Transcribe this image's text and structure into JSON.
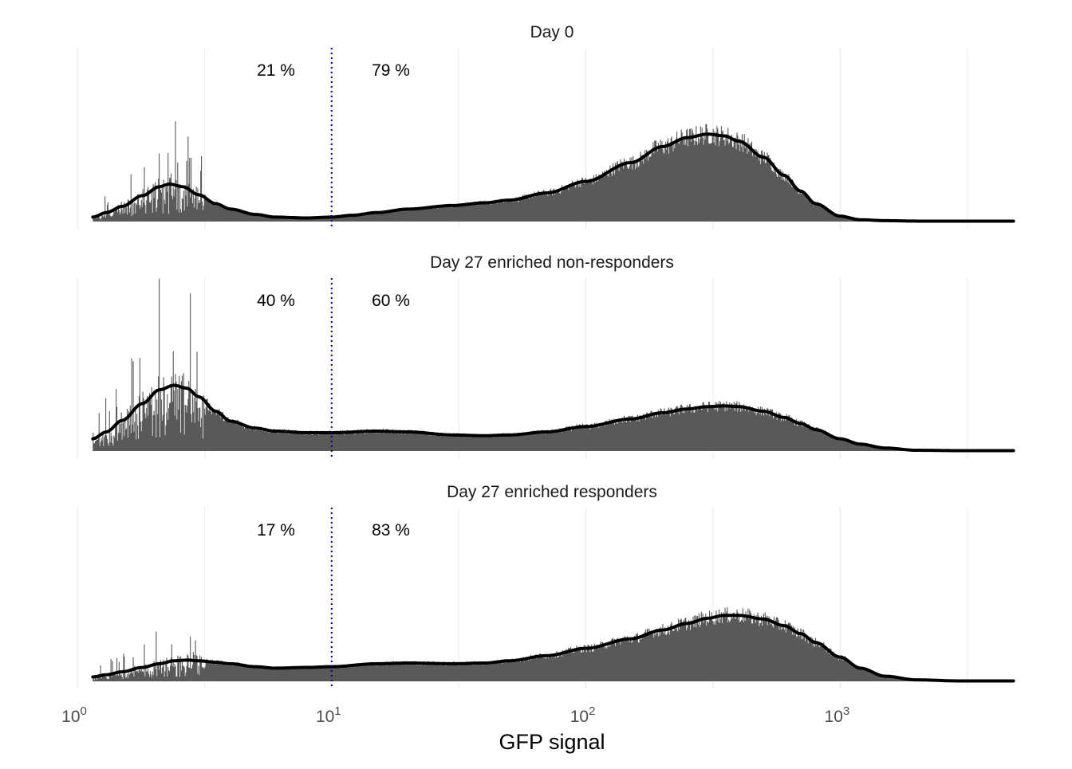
{
  "chart_data": {
    "type": "histogram",
    "x_scale": "log10",
    "xlim": [
      1,
      5000
    ],
    "xlabel": "GFP signal",
    "x_ticks": [
      {
        "base": "10",
        "exp": "0",
        "value": 1
      },
      {
        "base": "10",
        "exp": "1",
        "value": 10
      },
      {
        "base": "10",
        "exp": "2",
        "value": 100
      },
      {
        "base": "10",
        "exp": "3",
        "value": 1000
      }
    ],
    "threshold": 10,
    "colors": {
      "bars": "#595959",
      "density": "#000000",
      "threshold": "#00008B",
      "grid": "#EBEBEB"
    },
    "panels": [
      {
        "title": "Day 0",
        "left_percent": "21 %",
        "right_percent": "79 %",
        "density": {
          "x": [
            1.15,
            1.3,
            1.5,
            1.8,
            2.1,
            2.3,
            2.6,
            3.0,
            3.5,
            4,
            5,
            6,
            8,
            10,
            12,
            15,
            20,
            30,
            40,
            50,
            70,
            100,
            150,
            200,
            250,
            300,
            350,
            400,
            500,
            600,
            700,
            800,
            1000,
            1200,
            1500,
            2000,
            3000,
            5000
          ],
          "y": [
            0.05,
            0.1,
            0.17,
            0.29,
            0.39,
            0.42,
            0.39,
            0.3,
            0.2,
            0.14,
            0.08,
            0.05,
            0.04,
            0.05,
            0.07,
            0.1,
            0.14,
            0.18,
            0.21,
            0.24,
            0.32,
            0.45,
            0.66,
            0.84,
            0.94,
            0.98,
            0.96,
            0.9,
            0.72,
            0.52,
            0.34,
            0.2,
            0.06,
            0.02,
            0.01,
            0.005,
            0.005,
            0.005
          ]
        }
      },
      {
        "title": "Day 27 enriched non-responders",
        "left_percent": "40 %",
        "right_percent": "60 %",
        "density": {
          "x": [
            1.15,
            1.3,
            1.5,
            1.8,
            2.1,
            2.4,
            2.7,
            3.0,
            3.5,
            4,
            5,
            6,
            8,
            10,
            15,
            20,
            30,
            40,
            50,
            70,
            100,
            150,
            200,
            250,
            300,
            350,
            400,
            500,
            600,
            700,
            800,
            1000,
            1200,
            1500,
            2000,
            3000,
            5000
          ],
          "y": [
            0.16,
            0.25,
            0.4,
            0.62,
            0.8,
            0.86,
            0.82,
            0.71,
            0.52,
            0.39,
            0.3,
            0.26,
            0.24,
            0.24,
            0.26,
            0.25,
            0.21,
            0.2,
            0.21,
            0.25,
            0.32,
            0.42,
            0.5,
            0.55,
            0.58,
            0.59,
            0.58,
            0.52,
            0.44,
            0.36,
            0.28,
            0.16,
            0.09,
            0.04,
            0.01,
            0.005,
            0.005
          ]
        }
      },
      {
        "title": "Day 27 enriched responders",
        "left_percent": "17 %",
        "right_percent": "83 %",
        "density": {
          "x": [
            1.15,
            1.3,
            1.5,
            1.8,
            2.1,
            2.4,
            2.7,
            3.0,
            3.5,
            4,
            5,
            6,
            8,
            10,
            15,
            20,
            30,
            40,
            50,
            70,
            100,
            150,
            200,
            250,
            300,
            350,
            400,
            500,
            600,
            700,
            800,
            1000,
            1200,
            1500,
            2000,
            3000,
            5000
          ],
          "y": [
            0.06,
            0.09,
            0.13,
            0.19,
            0.24,
            0.28,
            0.29,
            0.28,
            0.26,
            0.24,
            0.2,
            0.18,
            0.19,
            0.2,
            0.24,
            0.25,
            0.24,
            0.25,
            0.28,
            0.35,
            0.45,
            0.58,
            0.7,
            0.79,
            0.86,
            0.9,
            0.9,
            0.85,
            0.76,
            0.65,
            0.53,
            0.33,
            0.18,
            0.07,
            0.02,
            0.005,
            0.005
          ]
        }
      }
    ]
  }
}
